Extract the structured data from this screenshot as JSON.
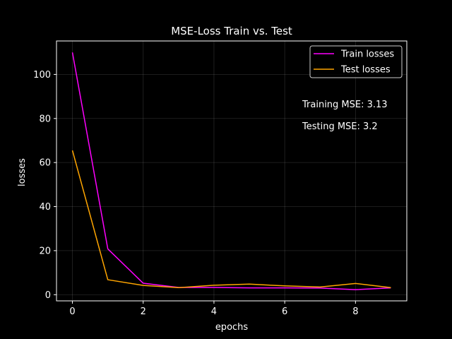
{
  "chart_data": {
    "type": "line",
    "title": "MSE-Loss Train vs. Test",
    "xlabel": "epochs",
    "ylabel": "losses",
    "xlim": [
      -0.45,
      9.45
    ],
    "ylim": [
      -2.8,
      115.2
    ],
    "xticks": [
      0,
      2,
      4,
      6,
      8
    ],
    "yticks": [
      0,
      20,
      40,
      60,
      80,
      100
    ],
    "grid": true,
    "legend_position": "top-right",
    "x": [
      0,
      1,
      2,
      3,
      4,
      5,
      6,
      7,
      8,
      9
    ],
    "series": [
      {
        "name": "Train losses",
        "color": "#ff00ff",
        "values": [
          110.0,
          20.8,
          5.2,
          3.3,
          3.3,
          3.1,
          3.1,
          3.0,
          2.3,
          3.1
        ]
      },
      {
        "name": "Test losses",
        "color": "#ffa500",
        "values": [
          65.5,
          6.8,
          4.2,
          3.2,
          4.3,
          4.8,
          4.0,
          3.5,
          5.1,
          3.2
        ]
      }
    ],
    "annotations": [
      "Training MSE: 3.13",
      "Testing MSE: 3.2"
    ]
  }
}
